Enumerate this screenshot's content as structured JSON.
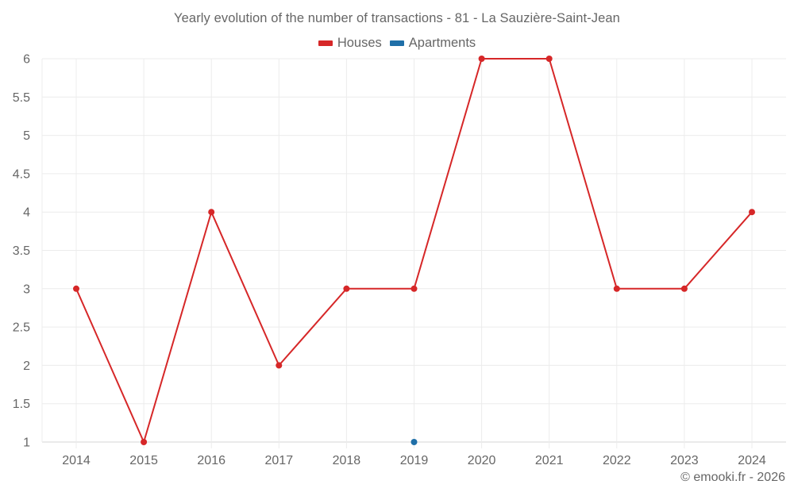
{
  "chart": {
    "title": "Yearly evolution of the number of transactions - 81 - La Sauzière-Saint-Jean",
    "credit": "© emooki.fr - 2026",
    "legend": [
      {
        "label": "Houses",
        "color": "#d62728"
      },
      {
        "label": "Apartments",
        "color": "#1f6fa8"
      }
    ]
  },
  "chart_data": {
    "type": "line",
    "title": "Yearly evolution of the number of transactions - 81 - La Sauzière-Saint-Jean",
    "xlabel": "",
    "ylabel": "",
    "categories": [
      "2014",
      "2015",
      "2016",
      "2017",
      "2018",
      "2019",
      "2020",
      "2021",
      "2022",
      "2023",
      "2024"
    ],
    "ylim": [
      1,
      6
    ],
    "yticks": [
      1,
      1.5,
      2,
      2.5,
      3,
      3.5,
      4,
      4.5,
      5,
      5.5,
      6
    ],
    "grid": true,
    "legend_position": "top-center",
    "series": [
      {
        "name": "Houses",
        "color": "#d62728",
        "values": [
          3,
          1,
          4,
          2,
          3,
          3,
          6,
          6,
          3,
          3,
          4
        ]
      },
      {
        "name": "Apartments",
        "color": "#1f6fa8",
        "values": [
          null,
          null,
          null,
          null,
          null,
          1,
          null,
          null,
          null,
          null,
          null
        ]
      }
    ]
  }
}
